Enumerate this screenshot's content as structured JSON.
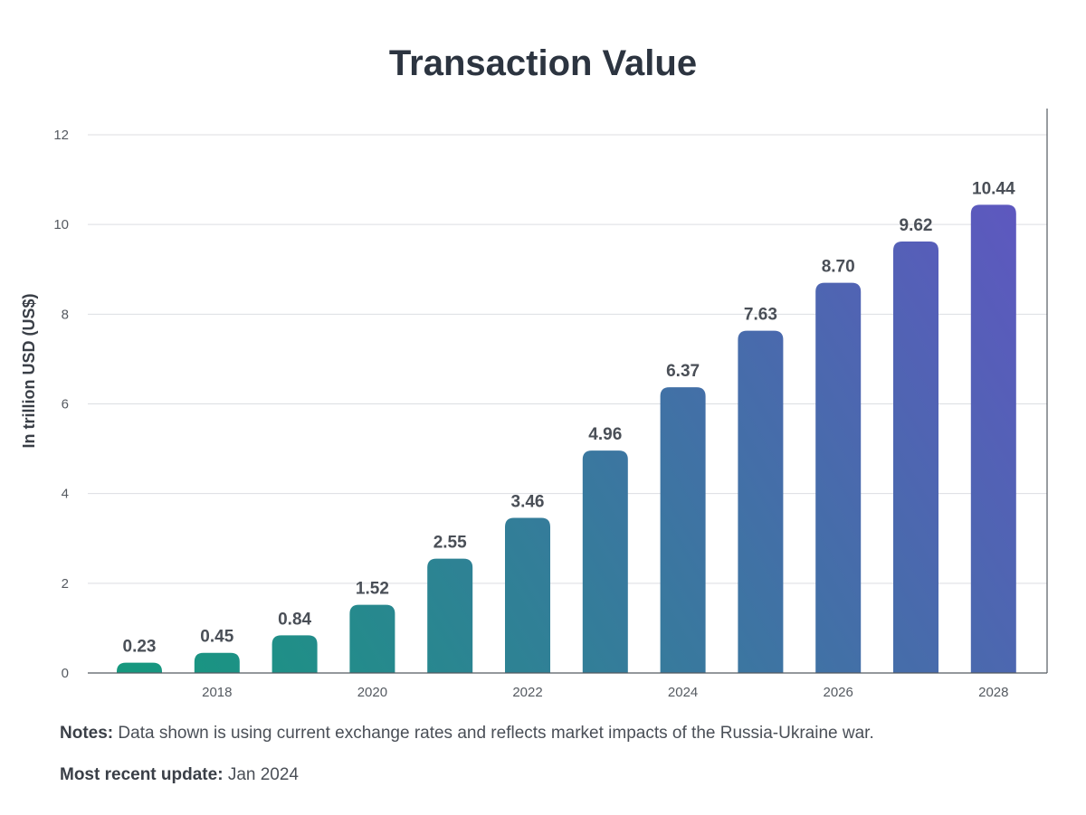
{
  "chart_data": {
    "type": "bar",
    "title": "Transaction Value",
    "ylabel": "In trillion USD (US$)",
    "xlabel": "",
    "categories": [
      "2017",
      "2018",
      "2019",
      "2020",
      "2021",
      "2022",
      "2023",
      "2024",
      "2025",
      "2026",
      "2027",
      "2028"
    ],
    "x_tick_labels": [
      "2018",
      "2020",
      "2022",
      "2024",
      "2026",
      "2028"
    ],
    "values": [
      0.23,
      0.45,
      0.84,
      1.52,
      2.55,
      3.46,
      4.96,
      6.37,
      7.63,
      8.7,
      9.62,
      10.44
    ],
    "data_labels": [
      "0.23",
      "0.45",
      "0.84",
      "1.52",
      "2.55",
      "3.46",
      "4.96",
      "6.37",
      "7.63",
      "8.70",
      "9.62",
      "10.44"
    ],
    "y_ticks": [
      0,
      2,
      4,
      6,
      8,
      10,
      12
    ],
    "ylim": [
      0,
      12
    ],
    "grid": true,
    "colors": {
      "bar_start": "#139a7c",
      "bar_end": "#6353c4",
      "grid": "#dcdee2",
      "axis": "#555a61",
      "tick_text": "#555a61",
      "label_text": "#4a4f57"
    }
  },
  "notes": {
    "label": "Notes:",
    "text": "Data shown is using current exchange rates and reflects market impacts of the Russia-Ukraine war."
  },
  "update": {
    "label": "Most recent update:",
    "text": "Jan 2024"
  }
}
